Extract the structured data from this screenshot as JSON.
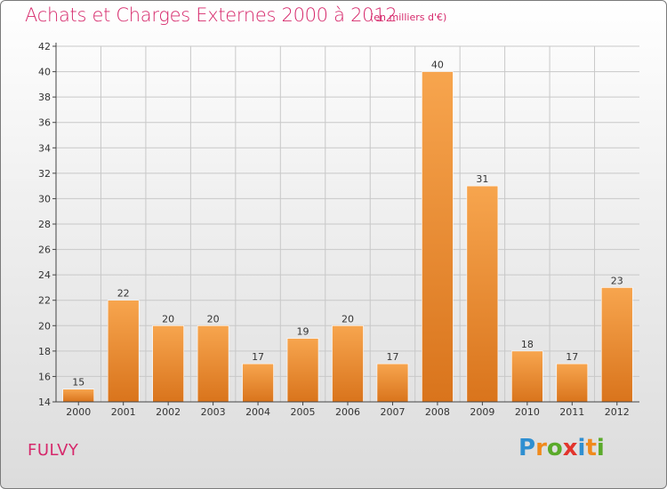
{
  "header": {
    "title": "Achats et Charges Externes 2000 à 2012",
    "subtitle": "(en milliers d'€)"
  },
  "footer": {
    "place": "FULVY",
    "logo": {
      "text": "Proxiti",
      "letters": [
        {
          "char": "P",
          "color": "#2f8fd1"
        },
        {
          "char": "r",
          "color": "#f08a1c"
        },
        {
          "char": "o",
          "color": "#5aaa2a"
        },
        {
          "char": "x",
          "color": "#e2342c"
        },
        {
          "char": "i",
          "color": "#2f8fd1"
        },
        {
          "char": "t",
          "color": "#f08a1c"
        },
        {
          "char": "i",
          "color": "#5aaa2a"
        }
      ]
    }
  },
  "colors": {
    "accent": "#d6286b",
    "bar_light": "#f7a54e",
    "bar_dark": "#d9741c",
    "grid": "#c8c8c8",
    "axis": "#444444"
  },
  "chart_data": {
    "type": "bar",
    "title": "Achats et Charges Externes 2000 à 2012",
    "subtitle": "(en milliers d'€)",
    "xlabel": "",
    "ylabel": "",
    "categories": [
      "2000",
      "2001",
      "2002",
      "2003",
      "2004",
      "2005",
      "2006",
      "2007",
      "2008",
      "2009",
      "2010",
      "2011",
      "2012"
    ],
    "values": [
      15,
      22,
      20,
      20,
      17,
      19,
      20,
      17,
      40,
      31,
      18,
      17,
      23
    ],
    "data_labels": [
      "15",
      "22",
      "20",
      "20",
      "17",
      "19",
      "20",
      "17",
      "40",
      "31",
      "18",
      "17",
      "23"
    ],
    "ylim": [
      14,
      42
    ],
    "yticks": [
      14,
      16,
      18,
      20,
      22,
      24,
      26,
      28,
      30,
      32,
      34,
      36,
      38,
      40,
      42
    ],
    "grid": true,
    "legend": "none"
  }
}
